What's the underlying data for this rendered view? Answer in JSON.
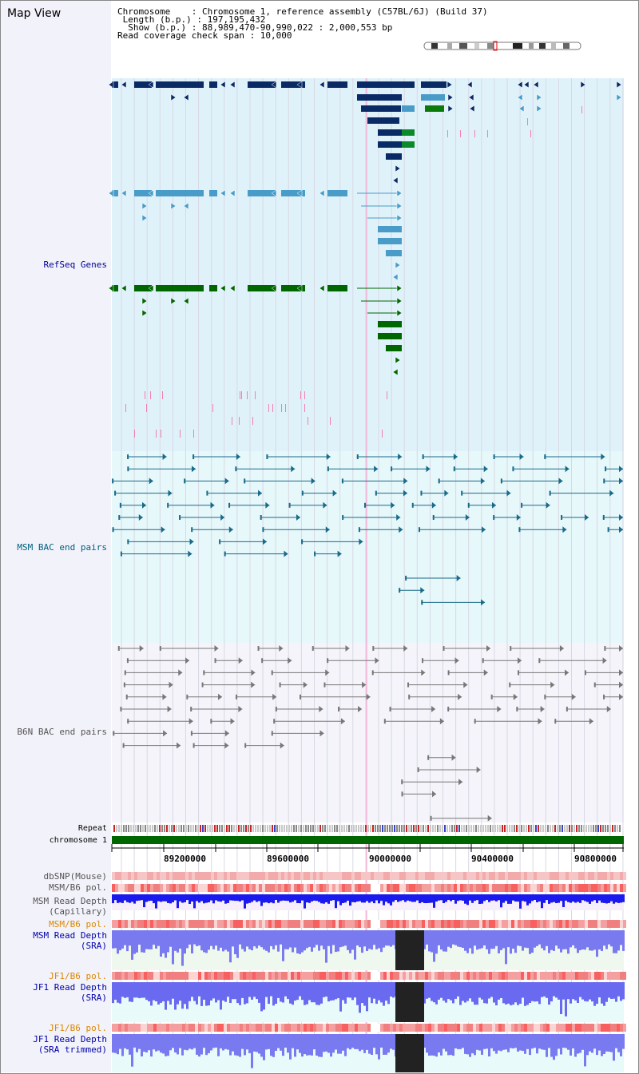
{
  "header": {
    "title": "Map View",
    "info_lines": [
      "Chromosome    : Chromosome 1, reference assembly (C57BL/6J) (Build 37)",
      " Length (b.p.) : 197,195,432",
      "  Show (b.p.) : 88,989,470-90,990,022 : 2,000,553 bp",
      "Read coverage check span : 10,000"
    ]
  },
  "tracks": {
    "refseq": "RefSeq Genes",
    "msm_bac": "MSM BAC end pairs",
    "b6n_bac": "B6N BAC end pairs",
    "repeat": "Repeat",
    "chromosome": "chromosome 1",
    "dbsnp": "dbSNP(Mouse)",
    "msm_b6_pol": "MSM/B6 pol.",
    "msm_depth_cap_1": "MSM Read Depth",
    "msm_depth_cap_2": "(Capillary)",
    "msm_b6_pol_sra": "MSM/B6 pol.",
    "msm_depth_sra_1": "MSM Read Depth",
    "msm_depth_sra_2": "(SRA)",
    "jf1_b6_pol": "JF1/B6 pol.",
    "jf1_depth_sra_1": "JF1 Read Depth",
    "jf1_depth_sra_2": "(SRA)",
    "jf1_b6_pol_2": "JF1/B6 pol.",
    "jf1_depth_trim_1": "JF1 Read Depth",
    "jf1_depth_trim_2": "(SRA trimmed)"
  },
  "axis": {
    "ticks": [
      "89200000",
      "89600000",
      "90000000",
      "90400000",
      "90800000"
    ]
  },
  "colors": {
    "refseq_bg": "#dff2fa",
    "msm_bg": "#e6f8fa",
    "b6n_bg": "#f4f4fa",
    "gene_dark": "#0a2a66",
    "gene_mid": "#4a9cc8",
    "gene_green": "#006600",
    "chromosome_bar": "#006600",
    "depth_blue": "#2a2af0",
    "depth_light": "#7a7af0"
  }
}
